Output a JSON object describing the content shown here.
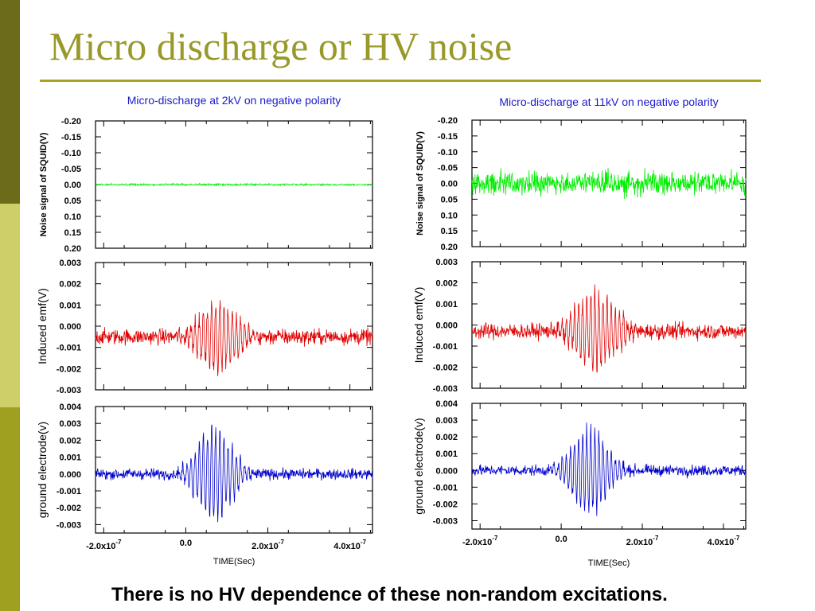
{
  "slide": {
    "title": "Micro discharge or HV noise",
    "footer": "There is no HV dependence of these non-random excitations.",
    "theme": {
      "bar_top": "#6b6b1a",
      "bar_mid": "#cfcf6a",
      "bar_bottom": "#a0a020",
      "title_color": "#99992a"
    }
  },
  "chart_data": [
    {
      "type": "line",
      "title": "Micro-discharge at 2kV on negative polarity",
      "title_color": "#1a1acc",
      "xlabel": "TIME(Sec)",
      "xlim": [
        -2.2e-07,
        4.55e-07
      ],
      "x_ticks": [
        {
          "value": -2e-07,
          "mantissa": "-2.0x10",
          "exp": "-7"
        },
        {
          "value": 0.0,
          "mantissa": "0.0",
          "exp": ""
        },
        {
          "value": 2e-07,
          "mantissa": "2.0x10",
          "exp": "-7"
        },
        {
          "value": 4e-07,
          "mantissa": "4.0x10",
          "exp": "-7"
        }
      ],
      "panels": [
        {
          "ylabel": "Noise signal of SQUID(V)",
          "ylabel_bold": true,
          "ylim": [
            -0.2,
            0.2
          ],
          "y_inverted": true,
          "yticks": [
            "-0.20",
            "-0.15",
            "-0.10",
            "-0.05",
            "0.00",
            "0.05",
            "0.10",
            "0.15",
            "0.20"
          ],
          "color": "#00ee00",
          "series": {
            "name": "",
            "baseline": 0.0,
            "amplitude": 0.003,
            "burst": false
          }
        },
        {
          "ylabel": "Induced emf(V)",
          "ylabel_bold": false,
          "ylim": [
            -0.003,
            0.003
          ],
          "y_inverted": false,
          "yticks": [
            "-0.003",
            "-0.002",
            "-0.001",
            "0.000",
            "0.001",
            "0.002",
            "0.003"
          ],
          "color": "#e00000",
          "series": {
            "name": "",
            "baseline": -0.0005,
            "amplitude": 0.00035,
            "burst": true,
            "burst_peak": 0.0019,
            "burst_start": -2e-08,
            "burst_end": 1.8e-07
          }
        },
        {
          "ylabel": "ground electrode(v)",
          "ylabel_bold": false,
          "ylim": [
            -0.0035,
            0.004
          ],
          "y_inverted": false,
          "yticks": [
            "-0.003",
            "-0.002",
            "-0.001",
            "0.000",
            "0.001",
            "0.002",
            "0.003",
            "0.004"
          ],
          "color": "#0000cc",
          "series": {
            "name": "",
            "baseline": 0.0,
            "amplitude": 0.0003,
            "burst": true,
            "burst_peak": 0.0031,
            "burst_start": -2e-08,
            "burst_end": 1.6e-07
          }
        }
      ]
    },
    {
      "type": "line",
      "title": "Micro-discharge at 11kV on negative polarity",
      "title_color": "#1a1acc",
      "xlabel": "TIME(Sec)",
      "xlim": [
        -2.2e-07,
        4.55e-07
      ],
      "x_ticks": [
        {
          "value": -2e-07,
          "mantissa": "-2.0x10",
          "exp": "-7"
        },
        {
          "value": 0.0,
          "mantissa": "0.0",
          "exp": ""
        },
        {
          "value": 2e-07,
          "mantissa": "2.0x10",
          "exp": "-7"
        },
        {
          "value": 4e-07,
          "mantissa": "4.0x10",
          "exp": "-7"
        }
      ],
      "panels": [
        {
          "ylabel": "Noise signal of SQUID(V)",
          "ylabel_bold": true,
          "ylim": [
            -0.2,
            0.2
          ],
          "y_inverted": true,
          "yticks": [
            "-0.20",
            "-0.15",
            "-0.10",
            "-0.05",
            "0.00",
            "0.05",
            "0.10",
            "0.15",
            "0.20"
          ],
          "color": "#00ee00",
          "series": {
            "name": "",
            "baseline": 0.0,
            "amplitude": 0.035,
            "burst": false
          }
        },
        {
          "ylabel": "Induced emf(V)",
          "ylabel_bold": false,
          "ylim": [
            -0.003,
            0.003
          ],
          "y_inverted": false,
          "yticks": [
            "-0.003",
            "-0.002",
            "-0.001",
            "0.000",
            "0.001",
            "0.002",
            "0.003"
          ],
          "color": "#e00000",
          "series": {
            "name": "",
            "baseline": -0.0003,
            "amplitude": 0.00035,
            "burst": true,
            "burst_peak": 0.0021,
            "burst_start": -2e-08,
            "burst_end": 1.9e-07
          }
        },
        {
          "ylabel": "ground electrode(v)",
          "ylabel_bold": false,
          "ylim": [
            -0.0035,
            0.004
          ],
          "y_inverted": false,
          "yticks": [
            "-0.003",
            "-0.002",
            "-0.001",
            "0.000",
            "0.001",
            "0.002",
            "0.003",
            "0.004"
          ],
          "color": "#0000cc",
          "series": {
            "name": "",
            "baseline": 0.0,
            "amplitude": 0.0003,
            "burst": true,
            "burst_peak": 0.003,
            "burst_start": -2e-08,
            "burst_end": 1.6e-07
          }
        }
      ]
    }
  ]
}
